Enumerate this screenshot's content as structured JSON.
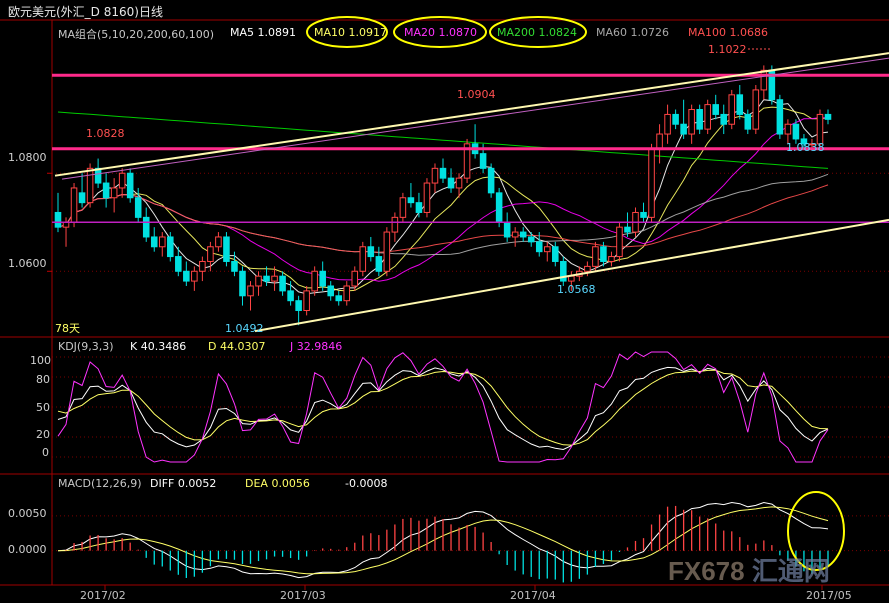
{
  "title": "欧元美元(外汇_D 8160)日线",
  "colors": {
    "up": "#ff4444",
    "down": "#00e0e0",
    "ma5": "#ffffff",
    "ma10": "#ffff66",
    "ma20": "#ff00ff",
    "ma60": "#b0b0b0",
    "ma100": "#ff5050",
    "ma200": "#00cc00",
    "hline": "#ff2a8a",
    "trend": "#fff8b0",
    "grid": "#3a0000",
    "highlight": "#ffff00"
  },
  "main_header": {
    "ma_group": "MA组合(5,10,20,200,60,100)",
    "ma5": "MA5 1.0891",
    "ma10": "MA10 1.0917",
    "ma20": "MA20 1.0870",
    "ma200": "MA200 1.0824",
    "ma60": "MA60 1.0726",
    "ma100": "MA100 1.0686"
  },
  "kdj_header": {
    "name": "KDJ(9,3,3)",
    "k": "K   40.3486",
    "d": "D   44.0307",
    "j": "J   32.9846"
  },
  "macd_header": {
    "name": "MACD(12,26,9)",
    "diff": "DIFF  0.0052",
    "dea": "DEA  0.0056",
    "macd": "-0.0008"
  },
  "annotations": {
    "high": "1.1022",
    "peak1": "1.0904",
    "left": "1.0828",
    "low1": "1.0492",
    "low2": "1.0568",
    "right": "1.0838",
    "days": "78天"
  },
  "axis_labels": {
    "price": [
      "1.0800",
      "1.0600"
    ],
    "kdj": [
      "100",
      "80",
      "50",
      "20",
      "0"
    ],
    "macd": [
      "0.0050",
      "0.0000"
    ],
    "dates": [
      "2017/02",
      "2017/03",
      "2017/04",
      "2017/05"
    ]
  },
  "watermark": {
    "a": "FX678",
    "b": "汇通网"
  },
  "chart_data": {
    "type": "candlestick",
    "title": "欧元美元(外汇_D 8160)日线",
    "price_axis_ticks": [
      1.06,
      1.08
    ],
    "candles": [
      [
        1.072,
        1.076,
        1.068,
        1.069
      ],
      [
        1.069,
        1.071,
        1.065,
        1.07
      ],
      [
        1.07,
        1.078,
        1.069,
        1.077
      ],
      [
        1.076,
        1.08,
        1.073,
        1.074
      ],
      [
        1.074,
        1.082,
        1.073,
        1.081
      ],
      [
        1.081,
        1.083,
        1.077,
        1.078
      ],
      [
        1.078,
        1.08,
        1.073,
        1.075
      ],
      [
        1.075,
        1.079,
        1.072,
        1.077
      ],
      [
        1.077,
        1.081,
        1.075,
        1.08
      ],
      [
        1.08,
        1.081,
        1.074,
        1.075
      ],
      [
        1.075,
        1.077,
        1.07,
        1.071
      ],
      [
        1.071,
        1.073,
        1.066,
        1.067
      ],
      [
        1.067,
        1.069,
        1.064,
        1.065
      ],
      [
        1.065,
        1.068,
        1.063,
        1.067
      ],
      [
        1.067,
        1.068,
        1.062,
        1.063
      ],
      [
        1.063,
        1.065,
        1.059,
        1.06
      ],
      [
        1.06,
        1.062,
        1.057,
        1.058
      ],
      [
        1.058,
        1.061,
        1.056,
        1.06
      ],
      [
        1.06,
        1.063,
        1.058,
        1.062
      ],
      [
        1.062,
        1.066,
        1.06,
        1.065
      ],
      [
        1.065,
        1.068,
        1.064,
        1.067
      ],
      [
        1.067,
        1.068,
        1.061,
        1.062
      ],
      [
        1.062,
        1.064,
        1.059,
        1.06
      ],
      [
        1.06,
        1.061,
        1.053,
        1.055
      ],
      [
        1.055,
        1.058,
        1.052,
        1.057
      ],
      [
        1.057,
        1.06,
        1.055,
        1.059
      ],
      [
        1.059,
        1.061,
        1.057,
        1.058
      ],
      [
        1.058,
        1.061,
        1.056,
        1.059
      ],
      [
        1.059,
        1.06,
        1.055,
        1.056
      ],
      [
        1.056,
        1.058,
        1.053,
        1.054
      ],
      [
        1.054,
        1.055,
        1.049,
        1.052
      ],
      [
        1.052,
        1.057,
        1.051,
        1.056
      ],
      [
        1.056,
        1.061,
        1.055,
        1.06
      ],
      [
        1.06,
        1.062,
        1.056,
        1.057
      ],
      [
        1.057,
        1.058,
        1.054,
        1.055
      ],
      [
        1.055,
        1.056,
        1.053,
        1.054
      ],
      [
        1.054,
        1.058,
        1.053,
        1.057
      ],
      [
        1.057,
        1.061,
        1.056,
        1.06
      ],
      [
        1.06,
        1.066,
        1.059,
        1.065
      ],
      [
        1.065,
        1.067,
        1.062,
        1.063
      ],
      [
        1.063,
        1.065,
        1.059,
        1.06
      ],
      [
        1.06,
        1.069,
        1.059,
        1.068
      ],
      [
        1.068,
        1.072,
        1.066,
        1.071
      ],
      [
        1.071,
        1.076,
        1.07,
        1.075
      ],
      [
        1.075,
        1.078,
        1.073,
        1.074
      ],
      [
        1.074,
        1.076,
        1.071,
        1.072
      ],
      [
        1.072,
        1.079,
        1.071,
        1.078
      ],
      [
        1.078,
        1.082,
        1.076,
        1.081
      ],
      [
        1.081,
        1.083,
        1.078,
        1.079
      ],
      [
        1.079,
        1.081,
        1.076,
        1.077
      ],
      [
        1.077,
        1.08,
        1.075,
        1.079
      ],
      [
        1.079,
        1.087,
        1.078,
        1.086
      ],
      [
        1.086,
        1.09,
        1.083,
        1.084
      ],
      [
        1.084,
        1.086,
        1.08,
        1.081
      ],
      [
        1.081,
        1.082,
        1.075,
        1.076
      ],
      [
        1.076,
        1.077,
        1.069,
        1.07
      ],
      [
        1.07,
        1.072,
        1.066,
        1.067
      ],
      [
        1.067,
        1.069,
        1.065,
        1.068
      ],
      [
        1.068,
        1.069,
        1.066,
        1.067
      ],
      [
        1.067,
        1.068,
        1.065,
        1.066
      ],
      [
        1.066,
        1.068,
        1.063,
        1.064
      ],
      [
        1.064,
        1.066,
        1.062,
        1.065
      ],
      [
        1.065,
        1.066,
        1.061,
        1.062
      ],
      [
        1.062,
        1.063,
        1.057,
        1.058
      ],
      [
        1.058,
        1.06,
        1.056,
        1.059
      ],
      [
        1.059,
        1.061,
        1.058,
        1.06
      ],
      [
        1.06,
        1.062,
        1.059,
        1.061
      ],
      [
        1.061,
        1.066,
        1.06,
        1.065
      ],
      [
        1.065,
        1.066,
        1.061,
        1.062
      ],
      [
        1.062,
        1.064,
        1.061,
        1.063
      ],
      [
        1.063,
        1.07,
        1.062,
        1.069
      ],
      [
        1.069,
        1.072,
        1.067,
        1.068
      ],
      [
        1.068,
        1.073,
        1.067,
        1.072
      ],
      [
        1.072,
        1.074,
        1.07,
        1.071
      ],
      [
        1.071,
        1.086,
        1.07,
        1.085
      ],
      [
        1.085,
        1.09,
        1.082,
        1.088
      ],
      [
        1.088,
        1.094,
        1.086,
        1.092
      ],
      [
        1.092,
        1.093,
        1.089,
        1.09
      ],
      [
        1.09,
        1.095,
        1.087,
        1.088
      ],
      [
        1.088,
        1.094,
        1.086,
        1.093
      ],
      [
        1.093,
        1.094,
        1.088,
        1.089
      ],
      [
        1.089,
        1.095,
        1.088,
        1.094
      ],
      [
        1.094,
        1.096,
        1.091,
        1.092
      ],
      [
        1.092,
        1.094,
        1.088,
        1.09
      ],
      [
        1.09,
        1.097,
        1.089,
        1.096
      ],
      [
        1.096,
        1.098,
        1.091,
        1.092
      ],
      [
        1.092,
        1.093,
        1.088,
        1.089
      ],
      [
        1.089,
        1.098,
        1.088,
        1.097
      ],
      [
        1.097,
        1.102,
        1.095,
        1.101
      ],
      [
        1.101,
        1.102,
        1.094,
        1.095
      ],
      [
        1.095,
        1.096,
        1.087,
        1.088
      ],
      [
        1.088,
        1.091,
        1.086,
        1.09
      ],
      [
        1.09,
        1.091,
        1.086,
        1.087
      ],
      [
        1.087,
        1.088,
        1.085,
        1.086
      ],
      [
        1.086,
        1.087,
        1.085,
        1.086
      ],
      [
        1.086,
        1.093,
        1.085,
        1.092
      ],
      [
        1.092,
        1.093,
        1.09,
        1.091
      ]
    ]
  }
}
